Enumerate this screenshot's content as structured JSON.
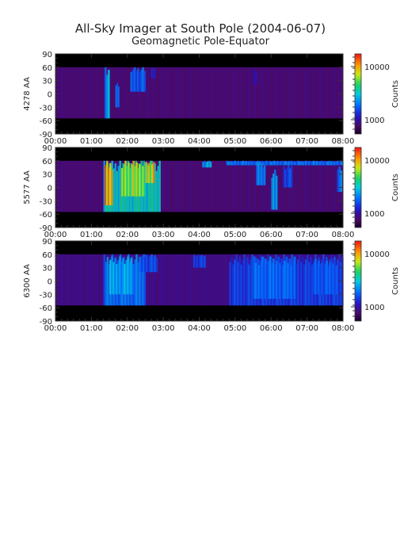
{
  "title": "All-Sky Imager at South Pole (2004-06-07)",
  "subtitle": "Geomagnetic Pole-Equator",
  "chart_data": [
    {
      "type": "heatmap",
      "ylabel": "4278 AA",
      "x_ticks": [
        "00:00",
        "01:00",
        "02:00",
        "03:00",
        "04:00",
        "05:00",
        "06:00",
        "07:00",
        "08:00"
      ],
      "y_ticks": [
        "90",
        "60",
        "30",
        "0",
        "-30",
        "-60",
        "-90"
      ],
      "xlim": [
        "00:00",
        "08:00"
      ],
      "ylim": [
        -90,
        90
      ],
      "data_lat_range": [
        -55,
        60
      ],
      "colorbar_label": "Counts",
      "colorbar_ticks": [
        "10000",
        "1000"
      ],
      "colorbar_scale": "log",
      "background_level": 0.1,
      "events": [
        {
          "t0": "01:22",
          "t1": "01:30",
          "lat0": -55,
          "lat1": 60,
          "level": 0.45
        },
        {
          "t0": "01:40",
          "t1": "01:46",
          "lat0": -30,
          "lat1": 25,
          "level": 0.35
        },
        {
          "t0": "02:05",
          "t1": "02:30",
          "lat0": 5,
          "lat1": 60,
          "level": 0.35
        },
        {
          "t0": "02:40",
          "t1": "02:46",
          "lat0": 35,
          "lat1": 60,
          "level": 0.25
        },
        {
          "t0": "05:30",
          "t1": "05:36",
          "lat0": 20,
          "lat1": 58,
          "level": 0.2
        }
      ]
    },
    {
      "type": "heatmap",
      "ylabel": "5577 AA",
      "x_ticks": [
        "00:00",
        "01:00",
        "02:00",
        "03:00",
        "04:00",
        "05:00",
        "06:00",
        "07:00",
        "08:00"
      ],
      "y_ticks": [
        "90",
        "60",
        "30",
        "0",
        "-30",
        "-60",
        "-90"
      ],
      "xlim": [
        "00:00",
        "08:00"
      ],
      "ylim": [
        -90,
        90
      ],
      "data_lat_range": [
        -55,
        60
      ],
      "colorbar_label": "Counts",
      "colorbar_ticks": [
        "10000",
        "1000"
      ],
      "colorbar_scale": "log",
      "background_level": 0.1,
      "events": [
        {
          "t0": "01:20",
          "t1": "02:55",
          "lat0": -55,
          "lat1": 60,
          "level": 0.55
        },
        {
          "t0": "01:22",
          "t1": "01:35",
          "lat0": -40,
          "lat1": 60,
          "level": 0.85
        },
        {
          "t0": "01:50",
          "t1": "02:30",
          "lat0": -20,
          "lat1": 60,
          "level": 0.72
        },
        {
          "t0": "02:30",
          "t1": "02:45",
          "lat0": 10,
          "lat1": 60,
          "level": 0.8
        },
        {
          "t0": "04:05",
          "t1": "04:20",
          "lat0": 45,
          "lat1": 60,
          "level": 0.45
        },
        {
          "t0": "04:45",
          "t1": "08:00",
          "lat0": 50,
          "lat1": 60,
          "level": 0.38
        },
        {
          "t0": "05:35",
          "t1": "05:50",
          "lat0": 5,
          "lat1": 55,
          "level": 0.4
        },
        {
          "t0": "06:00",
          "t1": "06:10",
          "lat0": -50,
          "lat1": 40,
          "level": 0.45
        },
        {
          "t0": "06:20",
          "t1": "06:35",
          "lat0": 0,
          "lat1": 50,
          "level": 0.32
        },
        {
          "t0": "07:50",
          "t1": "07:58",
          "lat0": -10,
          "lat1": 50,
          "level": 0.38
        }
      ]
    },
    {
      "type": "heatmap",
      "ylabel": "6300 AA",
      "x_ticks": [
        "00:00",
        "01:00",
        "02:00",
        "03:00",
        "04:00",
        "05:00",
        "06:00",
        "07:00",
        "08:00"
      ],
      "y_ticks": [
        "90",
        "60",
        "30",
        "0",
        "-30",
        "-60",
        "-90"
      ],
      "xlim": [
        "00:00",
        "08:00"
      ],
      "ylim": [
        -90,
        90
      ],
      "data_lat_range": [
        -55,
        60
      ],
      "colorbar_label": "Counts",
      "colorbar_ticks": [
        "10000",
        "1000"
      ],
      "colorbar_scale": "log",
      "background_level": 0.12,
      "events": [
        {
          "t0": "01:20",
          "t1": "02:30",
          "lat0": -55,
          "lat1": 60,
          "level": 0.38
        },
        {
          "t0": "01:30",
          "t1": "02:10",
          "lat0": -30,
          "lat1": 55,
          "level": 0.45
        },
        {
          "t0": "02:20",
          "t1": "02:50",
          "lat0": 20,
          "lat1": 60,
          "level": 0.32
        },
        {
          "t0": "03:50",
          "t1": "04:10",
          "lat0": 30,
          "lat1": 60,
          "level": 0.3
        },
        {
          "t0": "04:50",
          "t1": "08:00",
          "lat0": -55,
          "lat1": 60,
          "level": 0.3
        },
        {
          "t0": "05:30",
          "t1": "06:40",
          "lat0": -40,
          "lat1": 55,
          "level": 0.36
        },
        {
          "t0": "07:10",
          "t1": "07:50",
          "lat0": -30,
          "lat1": 50,
          "level": 0.34
        }
      ]
    }
  ]
}
